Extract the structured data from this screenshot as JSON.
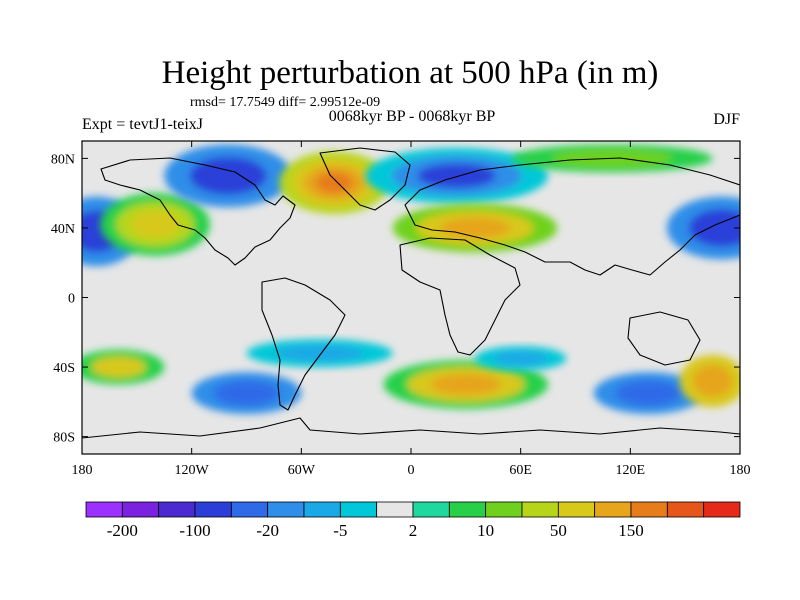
{
  "title": "Height perturbation at 500 hPa (in m)",
  "stats_line": "rmsd= 17.7549 diff= 2.99512e-09",
  "left_label": "Expt = tevtJ1-teixJ",
  "center_label": "0068kyr BP - 0068kyr BP",
  "right_label": "DJF",
  "map": {
    "projection": "cylindrical-equidistant",
    "lon_range": [
      -180,
      180
    ],
    "lat_range": [
      -90,
      90
    ],
    "lon_ticks": [
      {
        "value": -180,
        "label": "180"
      },
      {
        "value": -120,
        "label": "120W"
      },
      {
        "value": -60,
        "label": "60W"
      },
      {
        "value": 0,
        "label": "0"
      },
      {
        "value": 60,
        "label": "60E"
      },
      {
        "value": 120,
        "label": "120E"
      },
      {
        "value": 180,
        "label": "180"
      }
    ],
    "lat_ticks": [
      {
        "value": 80,
        "label": "80N"
      },
      {
        "value": 40,
        "label": "40N"
      },
      {
        "value": 0,
        "label": "0"
      },
      {
        "value": -40,
        "label": "40S"
      },
      {
        "value": -80,
        "label": "80S"
      }
    ],
    "background_color": "#e6e6e6",
    "coastline_color": "#000000"
  },
  "colorbar": {
    "colors": [
      "#9b30ff",
      "#7a22e0",
      "#4b2bd1",
      "#2b3fd8",
      "#2f6ae8",
      "#2e8ee8",
      "#1aa9e6",
      "#00c8d8",
      "#e6e6e6",
      "#1ed8a0",
      "#28d04a",
      "#6fd11e",
      "#b6d51a",
      "#d8c81a",
      "#e6a51a",
      "#e67c1a",
      "#e6551a",
      "#e62a1a"
    ],
    "labels": [
      "-200",
      "-100",
      "-20",
      "-5",
      "2",
      "10",
      "50",
      "150"
    ]
  },
  "features": [
    {
      "lon": -172,
      "lat": 38,
      "rx": 24,
      "ry": 20,
      "color": "#2b3fd8",
      "layers": [
        "#2e8ee8",
        "#2b3fd8"
      ]
    },
    {
      "lon": -140,
      "lat": 42,
      "rx": 30,
      "ry": 18,
      "color": "#d8c81a",
      "layers": [
        "#28d04a",
        "#b6d51a",
        "#d8c81a"
      ]
    },
    {
      "lon": -100,
      "lat": 70,
      "rx": 35,
      "ry": 18,
      "color": "#2b3fd8",
      "layers": [
        "#2e8ee8",
        "#2b3fd8"
      ]
    },
    {
      "lon": -42,
      "lat": 66,
      "rx": 30,
      "ry": 18,
      "color": "#e67c1a",
      "layers": [
        "#b6d51a",
        "#d8c81a",
        "#e6a51a",
        "#e67c1a"
      ]
    },
    {
      "lon": 25,
      "lat": 70,
      "rx": 50,
      "ry": 16,
      "color": "#2b3fd8",
      "layers": [
        "#00c8d8",
        "#2e8ee8",
        "#2b3fd8"
      ]
    },
    {
      "lon": 35,
      "lat": 40,
      "rx": 45,
      "ry": 14,
      "color": "#e6a51a",
      "layers": [
        "#6fd11e",
        "#d8c81a",
        "#e6a51a"
      ]
    },
    {
      "lon": 170,
      "lat": 40,
      "rx": 30,
      "ry": 18,
      "color": "#2b3fd8",
      "layers": [
        "#2e8ee8",
        "#2b3fd8"
      ]
    },
    {
      "lon": 110,
      "lat": 80,
      "rx": 55,
      "ry": 8,
      "color": "#6fd11e",
      "layers": [
        "#28d04a",
        "#6fd11e"
      ]
    },
    {
      "lon": -160,
      "lat": -40,
      "rx": 25,
      "ry": 10,
      "color": "#d8c81a",
      "layers": [
        "#28d04a",
        "#d8c81a"
      ]
    },
    {
      "lon": -90,
      "lat": -55,
      "rx": 30,
      "ry": 12,
      "color": "#2f6ae8",
      "layers": [
        "#2e8ee8",
        "#2f6ae8"
      ]
    },
    {
      "lon": 30,
      "lat": -50,
      "rx": 45,
      "ry": 14,
      "color": "#e6a51a",
      "layers": [
        "#28d04a",
        "#d8c81a",
        "#e6a51a"
      ]
    },
    {
      "lon": 130,
      "lat": -55,
      "rx": 30,
      "ry": 12,
      "color": "#2f6ae8",
      "layers": [
        "#2e8ee8",
        "#2f6ae8"
      ]
    },
    {
      "lon": 165,
      "lat": -48,
      "rx": 18,
      "ry": 15,
      "color": "#e6a51a",
      "layers": [
        "#d8c81a",
        "#e6a51a"
      ]
    },
    {
      "lon": -50,
      "lat": -32,
      "rx": 40,
      "ry": 8,
      "color": "#1aa9e6",
      "layers": [
        "#00c8d8",
        "#1aa9e6"
      ]
    },
    {
      "lon": 60,
      "lat": -35,
      "rx": 25,
      "ry": 7,
      "color": "#1aa9e6",
      "layers": [
        "#00c8d8",
        "#1aa9e6"
      ]
    }
  ]
}
